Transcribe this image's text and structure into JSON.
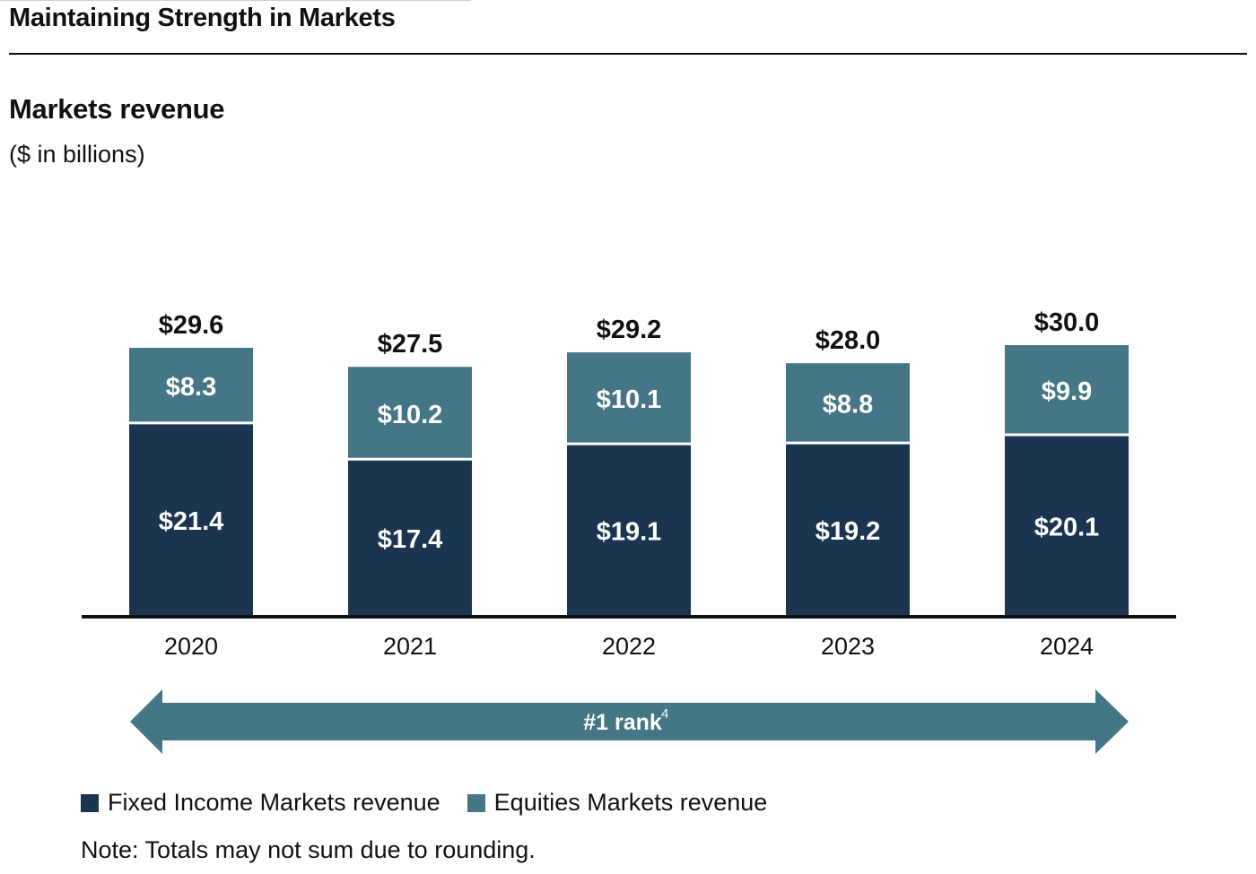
{
  "header": {
    "page_title": "Maintaining Strength in Markets"
  },
  "chart_data": {
    "type": "bar",
    "stacked": true,
    "title": "Markets revenue",
    "subtitle": "($ in billions)",
    "categories": [
      "2020",
      "2021",
      "2022",
      "2023",
      "2024"
    ],
    "series": [
      {
        "name": "Fixed Income Markets revenue",
        "values": [
          21.4,
          17.4,
          19.1,
          19.2,
          20.1
        ],
        "labels": [
          "$21.4",
          "$17.4",
          "$19.1",
          "$19.2",
          "$20.1"
        ],
        "color": "#1b3550"
      },
      {
        "name": "Equities Markets revenue",
        "values": [
          8.3,
          10.2,
          10.1,
          8.8,
          9.9
        ],
        "labels": [
          "$8.3",
          "$10.2",
          "$10.1",
          "$8.8",
          "$9.9"
        ],
        "color": "#457686"
      }
    ],
    "totals": [
      29.6,
      27.5,
      29.2,
      28.0,
      30.0
    ],
    "total_labels": [
      "$29.6",
      "$27.5",
      "$29.2",
      "$28.0",
      "$30.0"
    ],
    "ylim": [
      0,
      30.5
    ],
    "grid": false,
    "legend_position": "bottom-left",
    "annotation": {
      "text": "#1 rank",
      "superscript": "4",
      "color": "#457686"
    }
  },
  "note": "Note: Totals may not sum due to rounding."
}
